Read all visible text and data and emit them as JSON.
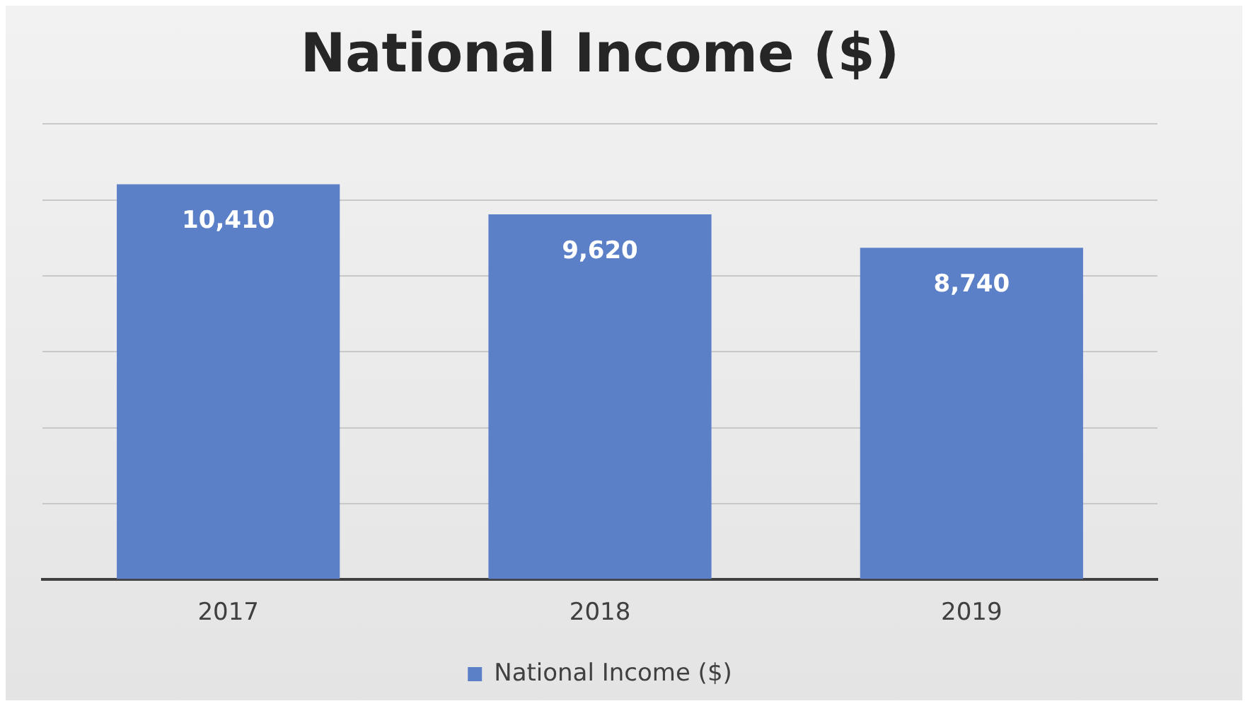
{
  "chart_data": {
    "type": "bar",
    "title": "National Income ($)",
    "categories": [
      "2017",
      "2018",
      "2019"
    ],
    "series": [
      {
        "name": "National Income ($)",
        "color": "#5b80c8",
        "values": [
          10410,
          9620,
          8740
        ],
        "value_labels": [
          "10,410",
          "9,620",
          "8,740"
        ]
      }
    ],
    "tick_labels": "x",
    "grid": "y",
    "legend": "bottom"
  }
}
